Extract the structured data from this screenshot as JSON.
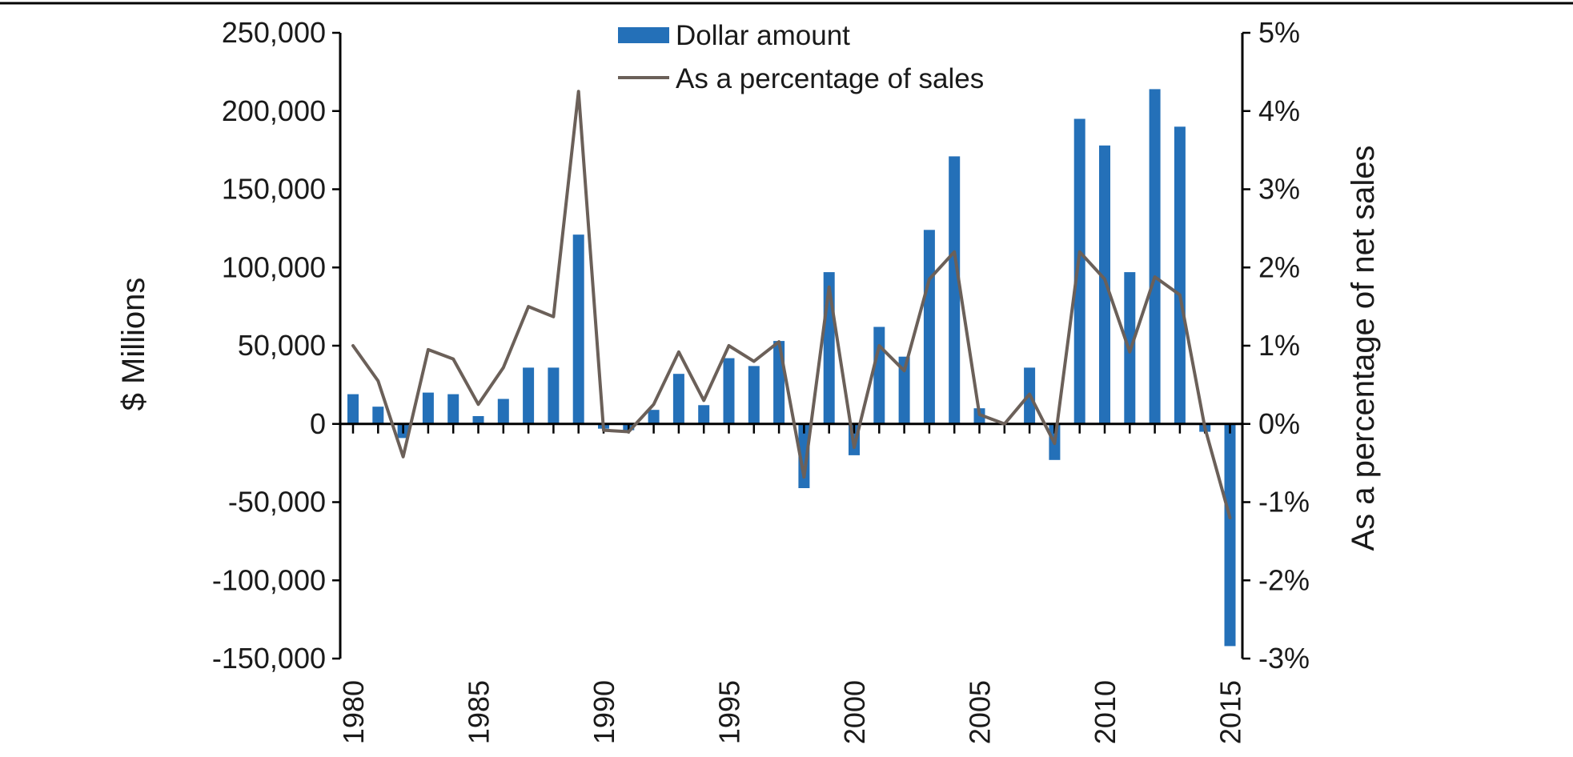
{
  "chart_data": {
    "type": "bar",
    "title": "",
    "x": [
      1980,
      1981,
      1982,
      1983,
      1984,
      1985,
      1986,
      1987,
      1988,
      1989,
      1990,
      1991,
      1992,
      1993,
      1994,
      1995,
      1996,
      1997,
      1998,
      1999,
      2000,
      2001,
      2002,
      2003,
      2004,
      2005,
      2006,
      2007,
      2008,
      2009,
      2010,
      2011,
      2012,
      2013,
      2014,
      2015
    ],
    "x_tick_labels": [
      "1980",
      "1985",
      "1990",
      "1995",
      "2000",
      "2005",
      "2010",
      "2015"
    ],
    "series": [
      {
        "name": "Dollar amount",
        "type": "bar",
        "axis": "left",
        "color": "#2470b8",
        "values": [
          19000,
          11000,
          -9000,
          20000,
          19000,
          5000,
          16000,
          36000,
          36000,
          121000,
          -3000,
          -4000,
          9000,
          32000,
          12000,
          42000,
          37000,
          53000,
          -41000,
          97000,
          -20000,
          62000,
          43000,
          124000,
          171000,
          10000,
          0,
          36000,
          -23000,
          195000,
          178000,
          97000,
          214000,
          190000,
          -5000,
          -142000
        ]
      },
      {
        "name": "As a percentage of sales",
        "type": "line",
        "axis": "right",
        "color": "#6b6059",
        "values": [
          1.0,
          0.55,
          -0.42,
          0.95,
          0.83,
          0.25,
          0.72,
          1.5,
          1.37,
          4.25,
          -0.08,
          -0.1,
          0.25,
          0.92,
          0.3,
          1.0,
          0.8,
          1.05,
          -0.68,
          1.75,
          -0.3,
          1.0,
          0.68,
          1.85,
          2.2,
          0.12,
          0.0,
          0.38,
          -0.25,
          2.2,
          1.85,
          0.92,
          1.88,
          1.65,
          -0.05,
          -1.2
        ]
      }
    ],
    "ylabel": "$ Millions",
    "ylim": [
      -150000,
      250000
    ],
    "y_tick_labels": [
      "250,000",
      "200,000",
      "150,000",
      "100,000",
      "50,000",
      "0",
      "-50,000",
      "-100,000",
      "-150,000"
    ],
    "y2label": "As a percentage of net sales",
    "y2lim": [
      -3,
      5
    ],
    "y2_tick_labels": [
      "5%",
      "4%",
      "3%",
      "2%",
      "1%",
      "0%",
      "-1%",
      "-2%",
      "-3%"
    ],
    "legend": [
      "Dollar amount",
      "As a percentage of sales"
    ],
    "legend_position": "top-center",
    "grid": false
  }
}
